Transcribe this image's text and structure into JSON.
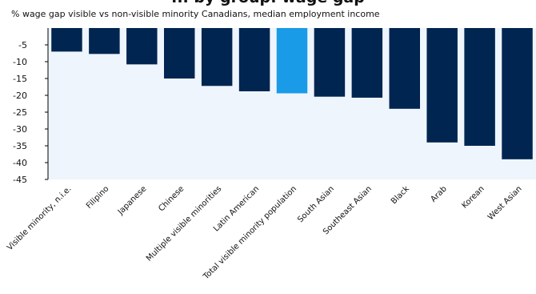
{
  "chart_data": {
    "type": "bar",
    "title": "... by group: wage gap",
    "subtitle": "% wage gap visible vs non-visible minority Canadians,  median employment income",
    "categories": [
      "Visible minority, n.i.e.",
      "Filipino",
      "Japanese",
      "Chinese",
      "Multiple visible minorities",
      "Latin American",
      "Total visible minority population",
      "South Asian",
      "Southeast Asian",
      "Black",
      "Arab",
      "Korean",
      "West Asian"
    ],
    "values": [
      -7,
      -7.7,
      -10.8,
      -15,
      -17.2,
      -18.8,
      -19.4,
      -20.4,
      -20.7,
      -24,
      -34,
      -35,
      -39
    ],
    "highlight_index": 6,
    "y_ticks": [
      -5,
      -10,
      -15,
      -20,
      -25,
      -30,
      -35,
      -40,
      -45
    ],
    "ylim": [
      -45,
      0
    ],
    "colors": {
      "bar": "#002550",
      "highlight": "#1a9be8",
      "plot_bg": "#eef5fc"
    }
  }
}
